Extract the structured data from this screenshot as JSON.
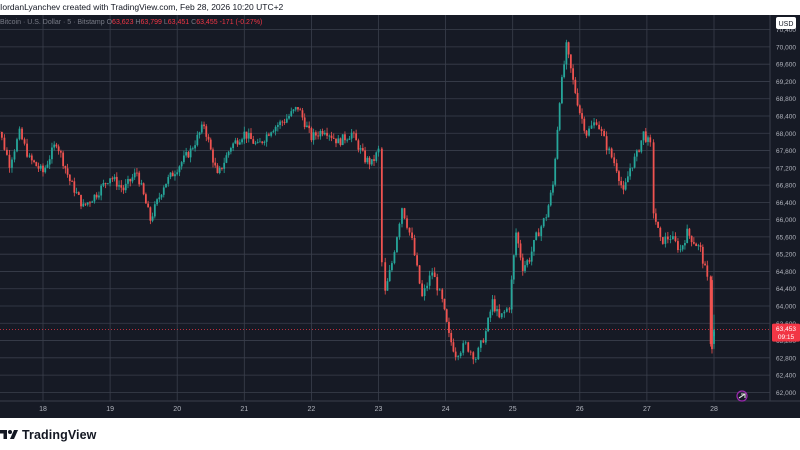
{
  "header": {
    "text": "IordanLyanchev created with TradingView.com, Feb 28, 2026 10:20 UTC+2"
  },
  "legend": {
    "symbol": "Bitcoin · U.S. Dollar · 5 · Bitstamp",
    "open": "63,623",
    "high": "63,799",
    "low": "63,451",
    "close": "63,455",
    "change": "-171 (-0.27%)",
    "open_label": "O",
    "high_label": "H",
    "low_label": "L",
    "close_label": "C"
  },
  "price_scale": {
    "currency": "USD",
    "ticks": [
      "70,400",
      "70,000",
      "69,600",
      "69,200",
      "68,800",
      "68,400",
      "68,000",
      "67,600",
      "67,200",
      "66,800",
      "66,400",
      "66,000",
      "65,600",
      "65,200",
      "64,800",
      "64,400",
      "64,000",
      "63,600",
      "63,200",
      "62,800",
      "62,400",
      "62,000"
    ]
  },
  "time_scale": {
    "ticks": [
      "18",
      "19",
      "20",
      "21",
      "22",
      "23",
      "24",
      "25",
      "26",
      "27",
      "28"
    ]
  },
  "last_price": {
    "value": "63,453",
    "countdown": "09:15"
  },
  "footer": {
    "brand": "TradingView"
  },
  "colors": {
    "background": "#161a25",
    "grid": "#3a3f4c",
    "up": "#26a69a",
    "down": "#ef5350",
    "last_price_tag": "#f23645",
    "scale_text": "#b2b5be"
  },
  "chart_data": {
    "type": "line",
    "title": "",
    "xlabel": "",
    "ylabel": "",
    "ylim": [
      61800,
      70600
    ],
    "grid": true,
    "x_categories": [
      "18",
      "19",
      "20",
      "21",
      "22",
      "23",
      "24",
      "25",
      "26",
      "27",
      "28"
    ],
    "series": [
      {
        "values": [
          [
            17.2,
            68400
          ],
          [
            17.35,
            68050
          ],
          [
            17.5,
            67300
          ],
          [
            17.65,
            68000
          ],
          [
            17.8,
            67400
          ],
          [
            18.0,
            67100
          ],
          [
            18.2,
            67800
          ],
          [
            18.4,
            66900
          ],
          [
            18.6,
            66300
          ],
          [
            18.8,
            66600
          ],
          [
            19.0,
            67000
          ],
          [
            19.2,
            66700
          ],
          [
            19.4,
            67100
          ],
          [
            19.6,
            66000
          ],
          [
            19.8,
            66800
          ],
          [
            20.0,
            67200
          ],
          [
            20.2,
            67600
          ],
          [
            20.4,
            68200
          ],
          [
            20.6,
            67000
          ],
          [
            20.8,
            67700
          ],
          [
            21.0,
            68000
          ],
          [
            21.2,
            67700
          ],
          [
            21.4,
            68100
          ],
          [
            21.6,
            68300
          ],
          [
            21.8,
            68600
          ],
          [
            22.0,
            67900
          ],
          [
            22.2,
            68100
          ],
          [
            22.4,
            67800
          ],
          [
            22.6,
            68000
          ],
          [
            22.8,
            67400
          ],
          [
            22.9,
            67300
          ],
          [
            23.0,
            67600
          ],
          [
            23.05,
            65000
          ],
          [
            23.1,
            64300
          ],
          [
            23.2,
            65000
          ],
          [
            23.35,
            66300
          ],
          [
            23.5,
            65500
          ],
          [
            23.65,
            64200
          ],
          [
            23.8,
            64800
          ],
          [
            23.95,
            64100
          ],
          [
            24.05,
            63300
          ],
          [
            24.15,
            62900
          ],
          [
            24.3,
            63100
          ],
          [
            24.45,
            62800
          ],
          [
            24.6,
            63400
          ],
          [
            24.7,
            64100
          ],
          [
            24.8,
            63700
          ],
          [
            24.95,
            64000
          ],
          [
            25.05,
            65700
          ],
          [
            25.15,
            64900
          ],
          [
            25.25,
            65100
          ],
          [
            25.35,
            65600
          ],
          [
            25.5,
            66100
          ],
          [
            25.6,
            66800
          ],
          [
            25.7,
            68800
          ],
          [
            25.8,
            70000
          ],
          [
            25.9,
            69200
          ],
          [
            26.0,
            68500
          ],
          [
            26.1,
            68000
          ],
          [
            26.25,
            68300
          ],
          [
            26.4,
            67700
          ],
          [
            26.55,
            67200
          ],
          [
            26.65,
            66600
          ],
          [
            26.75,
            67200
          ],
          [
            26.85,
            67500
          ],
          [
            26.95,
            68000
          ],
          [
            27.05,
            67700
          ],
          [
            27.1,
            66200
          ],
          [
            27.2,
            65500
          ],
          [
            27.35,
            65600
          ],
          [
            27.5,
            65300
          ],
          [
            27.6,
            65700
          ],
          [
            27.8,
            65300
          ],
          [
            27.9,
            64600
          ],
          [
            27.95,
            63200
          ],
          [
            28.0,
            63455
          ]
        ]
      }
    ]
  }
}
